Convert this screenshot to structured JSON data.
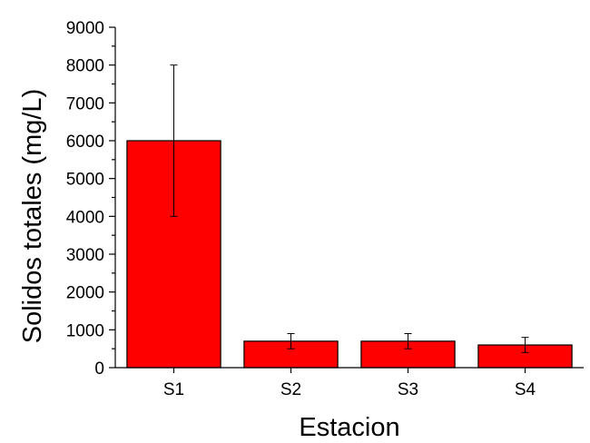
{
  "chart_data": {
    "type": "bar",
    "title": "",
    "xlabel": "Estacion",
    "ylabel": "Solidos totales (mg/L)",
    "ylim": [
      0,
      9000
    ],
    "yticks": [
      0,
      1000,
      2000,
      3000,
      4000,
      5000,
      6000,
      7000,
      8000,
      9000
    ],
    "y_minor_tick_step": 500,
    "categories": [
      "S1",
      "S2",
      "S3",
      "S4"
    ],
    "values": [
      6000,
      700,
      700,
      600
    ],
    "errors": [
      2000,
      200,
      200,
      200
    ],
    "bar_color": "#ff0000",
    "grid": false,
    "legend": "none"
  }
}
